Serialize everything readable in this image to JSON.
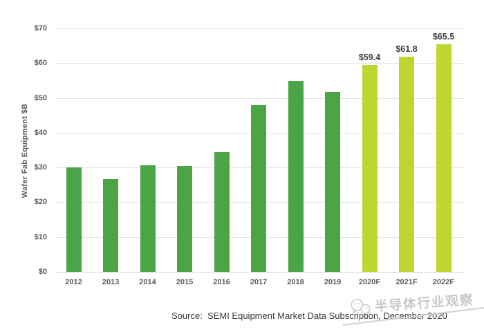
{
  "chart_data": {
    "type": "bar",
    "title": "",
    "categories": [
      "2012",
      "2013",
      "2014",
      "2015",
      "2016",
      "2017",
      "2018",
      "2019",
      "2020F",
      "2021F",
      "2022F"
    ],
    "series": [
      {
        "name": "Wafer Fab Equipment",
        "values": [
          30.0,
          26.6,
          30.7,
          30.4,
          34.4,
          48.0,
          54.9,
          51.7,
          59.4,
          61.8,
          65.5
        ]
      }
    ],
    "bar_labels": [
      "",
      "",
      "",
      "",
      "",
      "",
      "",
      "",
      "$59.4",
      "$61.8",
      "$65.5"
    ],
    "bar_types": [
      "historical",
      "historical",
      "historical",
      "historical",
      "historical",
      "historical",
      "historical",
      "historical",
      "forecast",
      "forecast",
      "forecast"
    ],
    "colors": {
      "historical": "#4BA446",
      "forecast": "#BFD630"
    },
    "xlabel": "",
    "ylabel": "Wafer Fab Equipment $B",
    "ylim": [
      0,
      70
    ],
    "ytick_step": 10,
    "ytick_labels": [
      "$0",
      "$10",
      "$20",
      "$30",
      "$40",
      "$50",
      "$60",
      "$70"
    ],
    "grid": true,
    "legend": false
  },
  "footer": {
    "source": "Source:  SEMI Equipment Market Data Subscription, December 2020"
  },
  "watermark": {
    "icon": "wechat-logo-icon",
    "text": "半导体行业观察",
    "color": "#c6c6c6"
  }
}
